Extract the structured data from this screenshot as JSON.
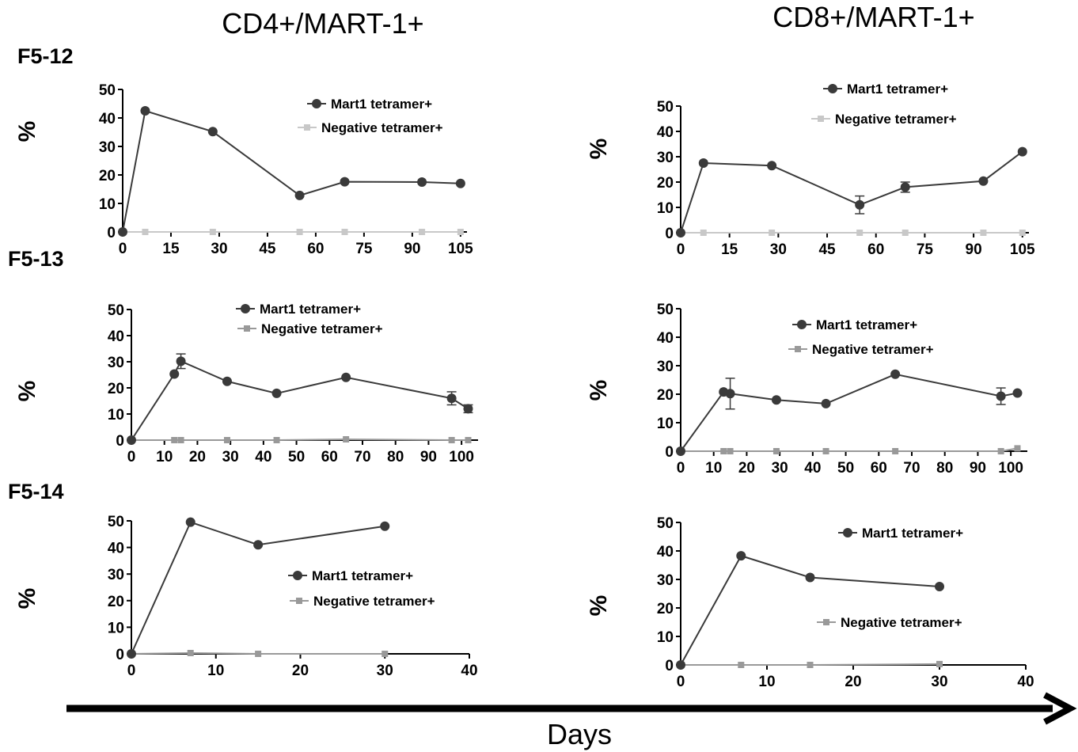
{
  "figure": {
    "column_titles": [
      "CD4+/MART-1+",
      "CD8+/MART-1+"
    ],
    "row_labels": [
      "F5-12",
      "F5-13",
      "F5-14"
    ],
    "x_axis_label": "Days",
    "colors": {
      "mart1": "#3a3a3a",
      "neg_light": "#c8c8c8",
      "neg_mid": "#999999",
      "axis": "#000000"
    }
  },
  "chart_data": [
    {
      "type": "line",
      "panel": "CD4+/MART-1+ F5-12",
      "ylabel": "%",
      "ylim": [
        0,
        50
      ],
      "yticks": [
        0,
        10,
        20,
        30,
        40,
        50
      ],
      "xlim": [
        0,
        107
      ],
      "xticks": [
        0,
        15,
        30,
        45,
        60,
        75,
        90,
        105
      ],
      "legend": "top-right",
      "series": [
        {
          "name": "Mart1 tetramer+",
          "marker": "circle",
          "color": "#3a3a3a",
          "x": [
            0,
            7,
            28,
            55,
            69,
            93,
            105
          ],
          "y": [
            0,
            42.5,
            35.2,
            12.8,
            17.6,
            17.5,
            17
          ]
        },
        {
          "name": "Negative tetramer+",
          "marker": "square",
          "color": "#c8c8c8",
          "x": [
            0,
            7,
            28,
            55,
            69,
            93,
            105
          ],
          "y": [
            0,
            0,
            0,
            0,
            0,
            0,
            0
          ]
        }
      ]
    },
    {
      "type": "line",
      "panel": "CD8+/MART-1+ F5-12",
      "ylabel": "%",
      "ylim": [
        0,
        50
      ],
      "yticks": [
        0,
        10,
        20,
        30,
        40,
        50
      ],
      "xlim": [
        0,
        107
      ],
      "xticks": [
        0,
        15,
        30,
        45,
        60,
        75,
        90,
        105
      ],
      "legend": "top",
      "series": [
        {
          "name": "Mart1 tetramer+",
          "marker": "circle",
          "color": "#3a3a3a",
          "x": [
            0,
            7,
            28,
            55,
            69,
            93,
            105
          ],
          "y": [
            0,
            27.5,
            26.5,
            11,
            18,
            20.4,
            32
          ],
          "err": [
            0,
            0,
            0,
            3.5,
            2,
            0,
            0
          ]
        },
        {
          "name": "Negative tetramer+",
          "marker": "square",
          "color": "#c8c8c8",
          "x": [
            0,
            7,
            28,
            55,
            69,
            93,
            105
          ],
          "y": [
            0,
            0,
            0,
            0,
            0,
            0,
            0
          ]
        }
      ]
    },
    {
      "type": "line",
      "panel": "CD4+/MART-1+ F5-13",
      "ylabel": "%",
      "ylim": [
        0,
        50
      ],
      "yticks": [
        0,
        10,
        20,
        30,
        40,
        50
      ],
      "xlim": [
        0,
        105
      ],
      "xticks": [
        0,
        10,
        20,
        30,
        40,
        50,
        60,
        70,
        80,
        90,
        100
      ],
      "legend": "top",
      "series": [
        {
          "name": "Mart1 tetramer+",
          "marker": "circle",
          "color": "#3a3a3a",
          "x": [
            0,
            13,
            15,
            29,
            44,
            65,
            97,
            102
          ],
          "y": [
            0,
            25.3,
            30.2,
            22.5,
            17.9,
            24,
            16,
            12
          ],
          "err": [
            0,
            0,
            2.8,
            0,
            0,
            0,
            2.5,
            1.5
          ]
        },
        {
          "name": "Negative tetramer+",
          "marker": "square",
          "color": "#999999",
          "x": [
            0,
            13,
            15,
            29,
            44,
            65,
            97,
            102
          ],
          "y": [
            0,
            0,
            0,
            0,
            0,
            0.3,
            0,
            0
          ]
        }
      ]
    },
    {
      "type": "line",
      "panel": "CD8+/MART-1+ F5-13",
      "ylabel": "%",
      "ylim": [
        0,
        50
      ],
      "yticks": [
        0,
        10,
        20,
        30,
        40,
        50
      ],
      "xlim": [
        0,
        105
      ],
      "xticks": [
        0,
        10,
        20,
        30,
        40,
        50,
        60,
        70,
        80,
        90,
        100
      ],
      "legend": "top",
      "series": [
        {
          "name": "Mart1 tetramer+",
          "marker": "circle",
          "color": "#3a3a3a",
          "x": [
            0,
            13,
            15,
            29,
            44,
            65,
            97,
            102
          ],
          "y": [
            0,
            20.8,
            20.2,
            18,
            16.7,
            27,
            19.3,
            20.4
          ],
          "err": [
            0,
            0,
            5.4,
            0,
            0,
            0,
            2.9,
            0
          ]
        },
        {
          "name": "Negative tetramer+",
          "marker": "square",
          "color": "#999999",
          "x": [
            0,
            13,
            15,
            29,
            44,
            65,
            97,
            102
          ],
          "y": [
            0,
            0,
            0,
            0,
            0,
            0,
            0,
            1
          ]
        }
      ]
    },
    {
      "type": "line",
      "panel": "CD4+/MART-1+ F5-14",
      "ylabel": "%",
      "ylim": [
        0,
        50
      ],
      "yticks": [
        0,
        10,
        20,
        30,
        40,
        50
      ],
      "xlim": [
        0,
        40
      ],
      "xticks": [
        0,
        10,
        20,
        30,
        40
      ],
      "legend": "right",
      "series": [
        {
          "name": "Mart1 tetramer+",
          "marker": "circle",
          "color": "#3a3a3a",
          "x": [
            0,
            7,
            15,
            30
          ],
          "y": [
            0,
            49.5,
            41,
            48
          ]
        },
        {
          "name": "Negative tetramer+",
          "marker": "square",
          "color": "#999999",
          "x": [
            0,
            7,
            15,
            30
          ],
          "y": [
            0,
            0.3,
            0,
            0
          ]
        }
      ]
    },
    {
      "type": "line",
      "panel": "CD8+/MART-1+ F5-14",
      "ylabel": "%",
      "ylim": [
        0,
        50
      ],
      "yticks": [
        0,
        10,
        20,
        30,
        40,
        50
      ],
      "xlim": [
        0,
        40
      ],
      "xticks": [
        0,
        10,
        20,
        30,
        40
      ],
      "legend": "right",
      "series": [
        {
          "name": "Mart1 tetramer+",
          "marker": "circle",
          "color": "#3a3a3a",
          "x": [
            0,
            7,
            15,
            30
          ],
          "y": [
            0,
            38.3,
            30.7,
            27.5
          ]
        },
        {
          "name": "Negative tetramer+",
          "marker": "square",
          "color": "#999999",
          "x": [
            0,
            7,
            15,
            30
          ],
          "y": [
            0,
            0,
            0,
            0.3
          ]
        }
      ]
    }
  ]
}
